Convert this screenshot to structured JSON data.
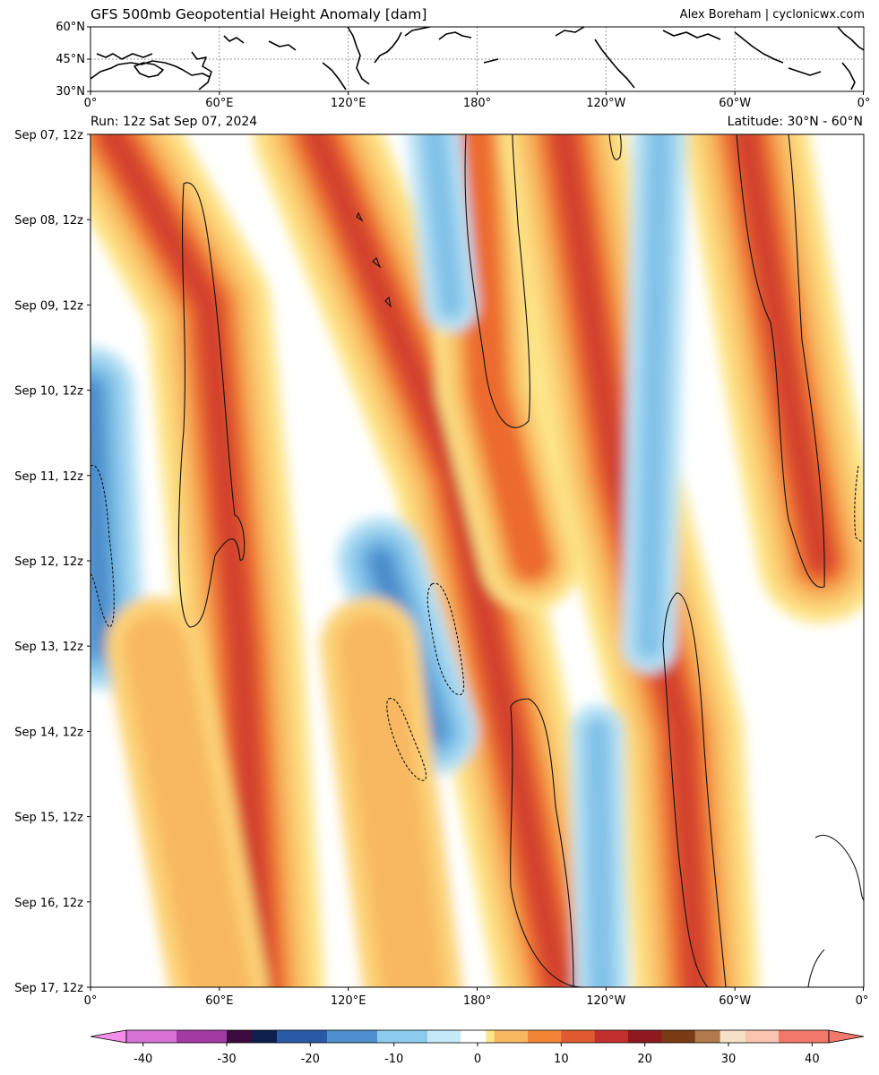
{
  "title": "GFS 500mb Geopotential Height Anomaly [dam]",
  "credit": "Alex Boreham | cyclonicwx.com",
  "run_label": "Run: 12z Sat Sep 07, 2024",
  "latitude_label": "Latitude: 30°N - 60°N",
  "colors": {
    "positive": [
      "#fde68a",
      "#fcd176",
      "#f8b862",
      "#f59d4a",
      "#f28435",
      "#ec6a2e",
      "#e05a30",
      "#d23f2f",
      "#b82929"
    ],
    "negative": [
      "#b5e1f5",
      "#9cd2ef",
      "#83c2e8",
      "#6cb1e0",
      "#5a9fd6",
      "#4a8bca"
    ],
    "contour": "#111111"
  },
  "chart_data": [
    {
      "type": "map",
      "panel": "reference map",
      "x_tick_labels": [
        "0°",
        "60°E",
        "120°E",
        "180°",
        "120°W",
        "60°W",
        "0°"
      ],
      "y_tick_labels": [
        "60°N",
        "45°N",
        "30°N"
      ],
      "grid": "dotted"
    },
    {
      "type": "heatmap",
      "panel": "hovmoller",
      "x_tick_labels": [
        "0°",
        "60°E",
        "120°E",
        "180°",
        "120°W",
        "60°W",
        "0°"
      ],
      "y_tick_labels": [
        "Sep 07, 12z",
        "Sep 08, 12z",
        "Sep 09, 12z",
        "Sep 10, 12z",
        "Sep 11, 12z",
        "Sep 12, 12z",
        "Sep 13, 12z",
        "Sep 14, 12z",
        "Sep 15, 12z",
        "Sep 16, 12z",
        "Sep 17, 12z"
      ],
      "xlim": [
        0,
        360
      ],
      "colorbar": {
        "ticks": [
          "-40",
          "-30",
          "-20",
          "-10",
          "0",
          "10",
          "20",
          "30",
          "40"
        ],
        "range": [
          -42,
          42
        ]
      },
      "features": [
        {
          "name": "ridge",
          "sign": "positive",
          "track": [
            [
              10,
              "Sep 07, 12z"
            ],
            [
              55,
              "Sep 09, 12z"
            ],
            [
              70,
              "Sep 13, 12z"
            ],
            [
              80,
              "Sep 17, 12z"
            ]
          ]
        },
        {
          "name": "ridge",
          "sign": "positive",
          "track": [
            [
              105,
              "Sep 07, 12z"
            ],
            [
              170,
              "Sep 11, 12z"
            ],
            [
              195,
              "Sep 14, 12z"
            ],
            [
              218,
              "Sep 17, 12z"
            ]
          ]
        },
        {
          "name": "ridge",
          "sign": "positive",
          "track": [
            [
              178,
              "Sep 07, 12z"
            ],
            [
              185,
              "Sep 10, 12z"
            ],
            [
              205,
              "Sep 12, 12z"
            ]
          ]
        },
        {
          "name": "ridge",
          "sign": "positive",
          "track": [
            [
              220,
              "Sep 07, 12z"
            ],
            [
              245,
              "Sep 11, 12z"
            ],
            [
              275,
              "Sep 14, 12z"
            ],
            [
              282,
              "Sep 17, 12z"
            ]
          ]
        },
        {
          "name": "ridge",
          "sign": "positive",
          "track": [
            [
              305,
              "Sep 07, 12z"
            ],
            [
              325,
              "Sep 10, 12z"
            ],
            [
              340,
              "Sep 12, 12z"
            ]
          ]
        },
        {
          "name": "trough",
          "sign": "negative",
          "track": [
            [
              135,
              "Sep 12, 12z"
            ],
            [
              160,
              "Sep 14, 12z"
            ]
          ]
        },
        {
          "name": "trough",
          "sign": "negative",
          "track": [
            [
              0,
              "Sep 10, 12z"
            ],
            [
              5,
              "Sep 13, 12z"
            ]
          ]
        }
      ]
    }
  ]
}
